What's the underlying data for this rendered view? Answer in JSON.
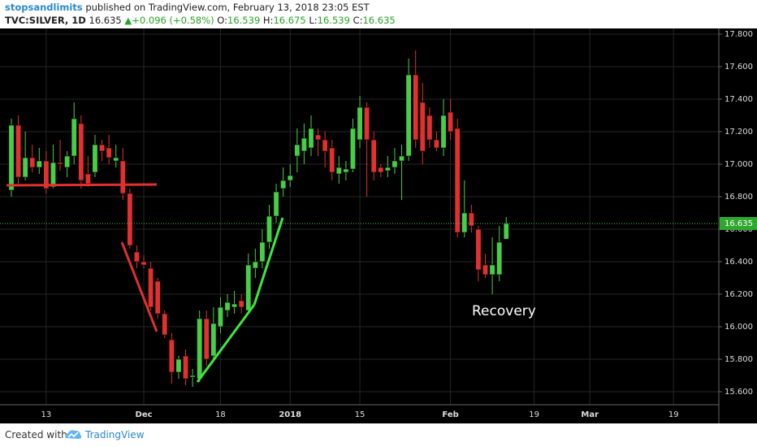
{
  "header": {
    "author": "stopsandlimits",
    "published": "published on TradingView.com, February 13, 2018 23:05 EST",
    "symbol": "TVC:SILVER, 1D",
    "last": "16.635",
    "change": "+0.096 (+0.58%)",
    "ohlc": [
      {
        "key": "O:",
        "value": "16.539"
      },
      {
        "key": "H:",
        "value": "16.675"
      },
      {
        "key": "L:",
        "value": "16.539"
      },
      {
        "key": "C:",
        "value": "16.635"
      }
    ]
  },
  "footer": {
    "created": "Created with",
    "brand": "TradingView"
  },
  "chart_data": {
    "type": "candlestick",
    "up_color": "#46cf46",
    "down_color": "#e2302e",
    "grid": true,
    "annotation": "Recovery",
    "last_price": 16.635,
    "categories": [
      null,
      null,
      null,
      null,
      null,
      "13",
      null,
      null,
      null,
      null,
      null,
      null,
      null,
      null,
      null,
      null,
      null,
      null,
      null,
      "Dec",
      null,
      null,
      null,
      null,
      null,
      null,
      null,
      null,
      null,
      null,
      "18",
      null,
      null,
      null,
      null,
      null,
      null,
      null,
      null,
      null,
      "2018",
      null,
      null,
      null,
      null,
      null,
      null,
      null,
      null,
      null,
      "15",
      null,
      null,
      null,
      null,
      null,
      null,
      null,
      null,
      null,
      null,
      null,
      null,
      "Feb",
      null,
      null,
      null,
      null,
      null,
      null,
      null,
      null,
      null,
      null,
      null,
      "19",
      null,
      null,
      null,
      null,
      null,
      null,
      null,
      "Mar",
      null,
      null,
      null,
      null,
      null,
      null,
      null,
      null,
      null,
      null,
      null,
      "19",
      null,
      null,
      null,
      null,
      null,
      null
    ],
    "open": [
      16.84,
      17.24,
      16.92,
      17.04,
      16.98,
      17.02,
      16.86,
      17.01,
      16.98,
      17.05,
      17.25,
      16.94,
      16.95,
      17.12,
      17.1,
      17.02,
      17.02,
      16.82,
      16.46,
      16.4,
      16.36,
      16.28,
      16.08,
      15.92,
      15.72,
      15.82,
      15.69,
      15.68,
      16.05,
      15.82,
      16.0,
      16.1,
      16.12,
      16.16,
      16.1,
      16.36,
      16.4,
      16.52,
      16.68,
      16.85,
      16.9,
      17.05,
      17.08,
      17.1,
      17.18,
      17.15,
      17.1,
      16.94,
      16.95,
      16.97,
      17.15,
      17.35,
      17.15,
      16.98,
      16.96,
      16.98,
      17.02,
      17.05,
      17.55,
      17.38,
      17.3,
      17.15,
      17.1,
      17.32,
      17.22,
      16.58,
      16.7,
      16.6,
      16.38,
      16.32,
      16.32,
      16.539,
      null,
      null,
      null,
      null,
      null,
      null,
      null,
      null,
      null,
      null,
      null,
      null,
      null,
      null,
      null,
      null,
      null,
      null,
      null,
      null,
      null,
      null,
      null,
      null,
      null,
      null,
      null,
      null,
      null,
      null
    ],
    "high": [
      17.28,
      17.3,
      17.2,
      17.12,
      17.1,
      17.08,
      17.12,
      17.15,
      17.08,
      17.38,
      17.3,
      17.05,
      17.18,
      17.15,
      17.18,
      17.12,
      17.1,
      16.85,
      16.5,
      16.44,
      16.4,
      16.3,
      16.1,
      15.96,
      15.82,
      15.86,
      15.74,
      16.1,
      16.1,
      16.12,
      16.18,
      16.2,
      16.22,
      16.2,
      16.45,
      16.48,
      16.6,
      16.75,
      16.88,
      16.98,
      17.0,
      17.22,
      17.25,
      17.3,
      17.22,
      17.2,
      17.15,
      17.05,
      17.02,
      17.28,
      17.42,
      17.38,
      17.2,
      17.0,
      17.05,
      17.1,
      17.12,
      17.65,
      17.7,
      17.5,
      17.35,
      17.2,
      17.4,
      17.4,
      17.28,
      16.9,
      16.75,
      16.62,
      16.45,
      16.55,
      16.62,
      16.675,
      null,
      null,
      null,
      null,
      null,
      null,
      null,
      null,
      null,
      null,
      null,
      null,
      null,
      null,
      null,
      null,
      null,
      null,
      null,
      null,
      null,
      null,
      null,
      null,
      null,
      null,
      null,
      null,
      null,
      null
    ],
    "low": [
      16.8,
      16.88,
      16.9,
      16.95,
      16.94,
      16.82,
      16.85,
      16.96,
      16.92,
      17.0,
      16.85,
      16.86,
      16.92,
      17.02,
      17.0,
      16.98,
      16.78,
      16.48,
      16.36,
      16.36,
      16.1,
      16.05,
      15.93,
      15.65,
      15.68,
      15.64,
      15.63,
      15.66,
      15.76,
      15.8,
      15.96,
      16.06,
      16.08,
      16.08,
      16.08,
      16.3,
      16.36,
      16.48,
      16.64,
      16.8,
      16.86,
      16.95,
      17.0,
      17.05,
      17.05,
      16.98,
      16.9,
      16.88,
      16.9,
      16.95,
      17.1,
      16.8,
      16.9,
      16.92,
      16.92,
      16.94,
      16.78,
      17.02,
      17.1,
      17.0,
      17.1,
      17.08,
      17.05,
      17.15,
      16.55,
      16.55,
      16.58,
      16.28,
      16.3,
      16.2,
      16.28,
      16.539,
      null,
      null,
      null,
      null,
      null,
      null,
      null,
      null,
      null,
      null,
      null,
      null,
      null,
      null,
      null,
      null,
      null,
      null,
      null,
      null,
      null,
      null,
      null,
      null,
      null,
      null,
      null,
      null,
      null,
      null
    ],
    "close": [
      17.24,
      16.92,
      17.04,
      16.98,
      17.02,
      16.85,
      17.01,
      17.0,
      17.05,
      17.28,
      16.9,
      16.88,
      17.12,
      17.08,
      17.04,
      17.04,
      16.82,
      16.5,
      16.4,
      16.38,
      16.12,
      16.08,
      15.95,
      15.72,
      15.8,
      15.68,
      15.7,
      16.05,
      15.8,
      16.02,
      16.12,
      16.15,
      16.14,
      16.12,
      16.38,
      16.4,
      16.52,
      16.68,
      16.83,
      16.9,
      16.93,
      17.12,
      17.16,
      17.22,
      17.15,
      17.08,
      16.95,
      16.98,
      16.97,
      17.22,
      17.35,
      17.15,
      16.95,
      16.95,
      16.98,
      17.02,
      17.05,
      17.55,
      17.15,
      17.08,
      17.15,
      17.1,
      17.3,
      17.2,
      16.58,
      16.7,
      16.62,
      16.35,
      16.32,
      16.38,
      16.52,
      16.635,
      null,
      null,
      null,
      null,
      null,
      null,
      null,
      null,
      null,
      null,
      null,
      null,
      null,
      null,
      null,
      null,
      null,
      null,
      null,
      null,
      null,
      null,
      null,
      null,
      null,
      null,
      null,
      null,
      null,
      null
    ],
    "ylim": [
      15.52,
      17.835
    ],
    "yticks": [
      {
        "value": 15.6,
        "label": "15.600"
      },
      {
        "value": 15.8,
        "label": "15.800"
      },
      {
        "value": 16.0,
        "label": "16.000"
      },
      {
        "value": 16.2,
        "label": "16.200"
      },
      {
        "value": 16.4,
        "label": "16.400"
      },
      {
        "value": 16.6,
        "label": "16.600"
      },
      {
        "value": 16.8,
        "label": "16.800"
      },
      {
        "value": 17.0,
        "label": "17.000"
      },
      {
        "value": 17.2,
        "label": "17.200"
      },
      {
        "value": 17.4,
        "label": "17.400"
      },
      {
        "value": 17.6,
        "label": "17.600"
      },
      {
        "value": 17.8,
        "label": "17.800"
      }
    ]
  }
}
